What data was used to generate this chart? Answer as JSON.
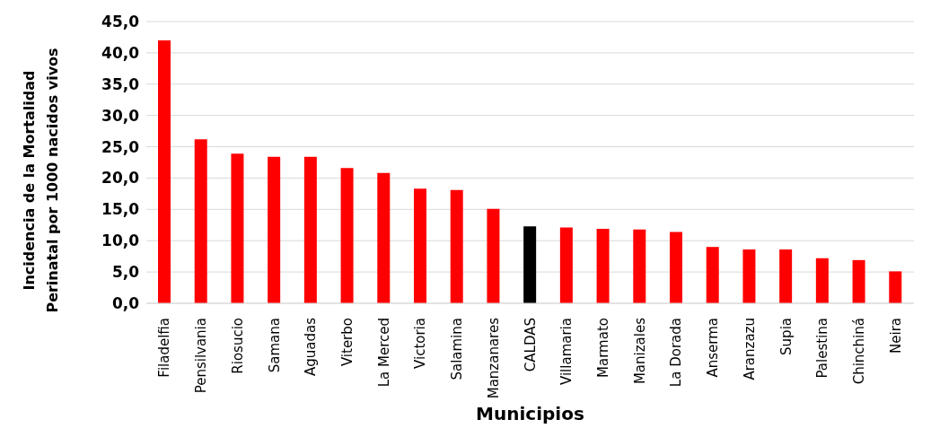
{
  "chart_data": {
    "type": "bar",
    "xlabel": "Municipios",
    "ylabel": "Incidencia de la Mortalidad\nPerinatal por 1000 nacidos vivos",
    "categories": [
      "Filadelfia",
      "Pensilvania",
      "Riosucio",
      "Samana",
      "Aguadas",
      "Viterbo",
      "La Merced",
      "Victoria",
      "Salamina",
      "Manzanares",
      "CALDAS",
      "Villamaria",
      "Marmato",
      "Manizales",
      "La Dorada",
      "Anserma",
      "Aranzazu",
      "Supia",
      "Palestina",
      "Chinchiná",
      "Neira"
    ],
    "values": [
      42.0,
      26.2,
      23.9,
      23.4,
      23.4,
      21.6,
      20.8,
      18.3,
      18.1,
      15.1,
      12.3,
      12.1,
      11.9,
      11.8,
      11.4,
      9.0,
      8.6,
      8.6,
      7.2,
      6.9,
      5.1
    ],
    "colors": [
      "#ff0000",
      "#ff0000",
      "#ff0000",
      "#ff0000",
      "#ff0000",
      "#ff0000",
      "#ff0000",
      "#ff0000",
      "#ff0000",
      "#ff0000",
      "#000000",
      "#ff0000",
      "#ff0000",
      "#ff0000",
      "#ff0000",
      "#ff0000",
      "#ff0000",
      "#ff0000",
      "#ff0000",
      "#ff0000",
      "#ff0000"
    ],
    "ylim": [
      0,
      45
    ],
    "yticks": [
      {
        "value": 0,
        "label": "0,0"
      },
      {
        "value": 5,
        "label": "5,0"
      },
      {
        "value": 10,
        "label": "10,0"
      },
      {
        "value": 15,
        "label": "15,0"
      },
      {
        "value": 20,
        "label": "20,0"
      },
      {
        "value": 25,
        "label": "25,0"
      },
      {
        "value": 30,
        "label": "30,0"
      },
      {
        "value": 35,
        "label": "35,0"
      },
      {
        "value": 40,
        "label": "40,0"
      },
      {
        "value": 45,
        "label": "45,0"
      }
    ],
    "grid": "y"
  }
}
